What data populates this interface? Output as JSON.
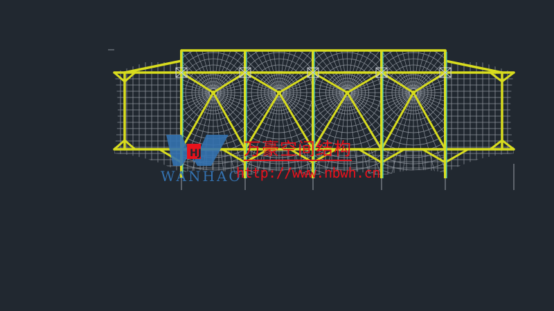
{
  "drawing": {
    "colors": {
      "background": "#212830",
      "steel": "#d8dc1e",
      "column_accent": "#3fd0c8",
      "membrane_mesh": "#8d939b",
      "watermark_red": "#e8121c",
      "logo_blue": "#3472b0"
    },
    "bays": 4
  },
  "watermark": {
    "company_cn": "万豪空间结构",
    "url": "http://www.nbwh.cn",
    "logo_text": "WANHAO"
  }
}
